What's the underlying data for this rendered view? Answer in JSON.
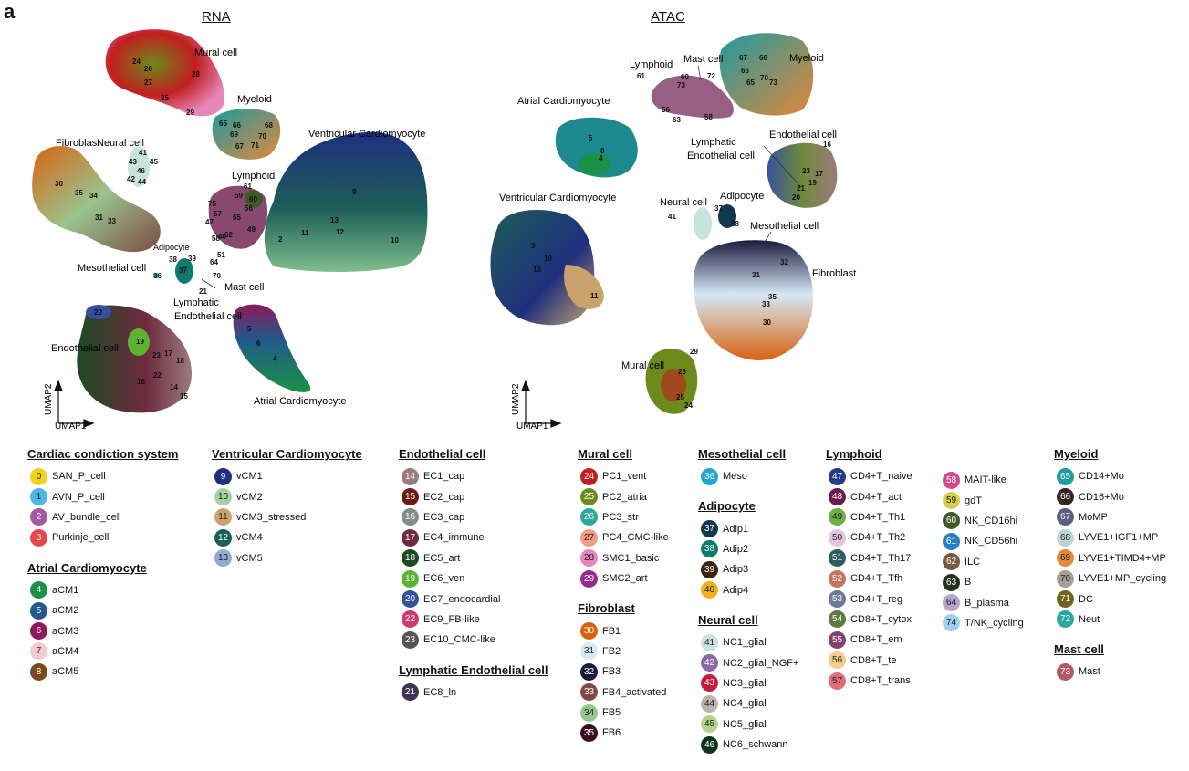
{
  "panel_letter": "a",
  "rna_title": "RNA",
  "atac_title": "ATAC",
  "axis": {
    "umap1": "UMAP1",
    "umap2": "UMAP2"
  },
  "rna_labels": [
    "Mural cell",
    "Myeloid",
    "Neural cell",
    "Fibroblast",
    "Ventricular Cardiomyocyte",
    "Lymphoid",
    "Adipocyte",
    "Mesothelial cell",
    "Mast cell",
    "Lymphatic",
    "Endothelial cell",
    "Endothelial cell",
    "Atrial Cardiomyocyte"
  ],
  "atac_labels": [
    "Lymphoid",
    "Mast cell",
    "Myeloid",
    "Atrial Cardiomyocyte",
    "Endothelial cell",
    "Lymphatic",
    "Endothelial cell",
    "Ventricular Cardiomyocyte",
    "Neural cell",
    "Adipocyte",
    "Mesothelial cell",
    "Fibroblast",
    "Mural cell"
  ],
  "rna_numbers": [
    "24",
    "26",
    "27",
    "28",
    "25",
    "29",
    "65",
    "69",
    "66",
    "68",
    "70",
    "67",
    "71",
    "41",
    "45",
    "43",
    "46",
    "42",
    "44",
    "30",
    "35",
    "34",
    "31",
    "33",
    "75",
    "57",
    "47",
    "61",
    "59",
    "60",
    "56",
    "55",
    "49",
    "62",
    "40",
    "58",
    "51",
    "64",
    "70",
    "38",
    "37",
    "39",
    "36",
    "21",
    "20",
    "19",
    "23",
    "17",
    "18",
    "16",
    "22",
    "14",
    "15",
    "9",
    "13",
    "12",
    "11",
    "2",
    "10",
    "5",
    "6",
    "4"
  ],
  "atac_numbers": [
    "61",
    "60",
    "73",
    "72",
    "67",
    "68",
    "66",
    "65",
    "70",
    "73",
    "56",
    "63",
    "58",
    "5",
    "8",
    "4",
    "16",
    "21",
    "20",
    "19",
    "17",
    "23",
    "37",
    "38",
    "41",
    "3",
    "10",
    "13",
    "11",
    "31",
    "32",
    "35",
    "33",
    "30",
    "29",
    "28",
    "25",
    "24"
  ],
  "legend": [
    {
      "title": "Cardiac condiction system",
      "items": [
        {
          "num": "0",
          "label": "SAN_P_cell",
          "color": "#f2d21b"
        },
        {
          "num": "1",
          "label": "AVN_P_cell",
          "color": "#4bb8e5"
        },
        {
          "num": "2",
          "label": "AV_bundle_cell",
          "color": "#a35aa0"
        },
        {
          "num": "3",
          "label": "Purkinje_cell",
          "color": "#e8474a"
        }
      ]
    },
    {
      "title": "Atrial Cardiomyocyte",
      "items": [
        {
          "num": "4",
          "label": "aCM1",
          "color": "#1a9146"
        },
        {
          "num": "5",
          "label": "aCM2",
          "color": "#22598c"
        },
        {
          "num": "6",
          "label": "aCM3",
          "color": "#8b1a5a"
        },
        {
          "num": "7",
          "label": "aCM4",
          "color": "#f3c9d2"
        },
        {
          "num": "8",
          "label": "aCM5",
          "color": "#7a4a1f"
        }
      ]
    },
    {
      "title": "Ventricular Cardiomyocyte",
      "items": [
        {
          "num": "9",
          "label": "vCM1",
          "color": "#1f2f7e"
        },
        {
          "num": "10",
          "label": "vCM2",
          "color": "#a7d3a4"
        },
        {
          "num": "11",
          "label": "vCM3_stressed",
          "color": "#c8a36b"
        },
        {
          "num": "12",
          "label": "vCM4",
          "color": "#1d5e57"
        },
        {
          "num": "13",
          "label": "vCM5",
          "color": "#94a8d8"
        }
      ]
    },
    {
      "title": "Endothelial cell",
      "items": [
        {
          "num": "14",
          "label": "EC1_cap",
          "color": "#9c7a7d"
        },
        {
          "num": "15",
          "label": "EC2_cap",
          "color": "#6a1c10"
        },
        {
          "num": "16",
          "label": "EC3_cap",
          "color": "#7f8f88"
        },
        {
          "num": "17",
          "label": "EC4_immune",
          "color": "#6e2a40"
        },
        {
          "num": "18",
          "label": "EC5_art",
          "color": "#1c4a22"
        },
        {
          "num": "19",
          "label": "EC6_ven",
          "color": "#5db231"
        },
        {
          "num": "20",
          "label": "EC7_endocardial",
          "color": "#3650a0"
        },
        {
          "num": "22",
          "label": "EC9_FB-like",
          "color": "#d03a6a"
        },
        {
          "num": "23",
          "label": "EC10_CMC-like",
          "color": "#555555"
        }
      ]
    },
    {
      "title": "Lymphatic Endothelial cell",
      "items": [
        {
          "num": "21",
          "label": "EC8_ln",
          "color": "#3e3354"
        }
      ]
    },
    {
      "title": "Mural cell",
      "items": [
        {
          "num": "24",
          "label": "PC1_vent",
          "color": "#c11f1f"
        },
        {
          "num": "25",
          "label": "PC2_atria",
          "color": "#6d8a1c"
        },
        {
          "num": "26",
          "label": "PC3_str",
          "color": "#2aa89a"
        },
        {
          "num": "27",
          "label": "PC4_CMC-like",
          "color": "#f29b86"
        },
        {
          "num": "28",
          "label": "SMC1_basic",
          "color": "#e587b8"
        },
        {
          "num": "29",
          "label": "SMC2_art",
          "color": "#9a2a8e"
        }
      ]
    },
    {
      "title": "Fibroblast",
      "items": [
        {
          "num": "30",
          "label": "FB1",
          "color": "#d9620f"
        },
        {
          "num": "31",
          "label": "FB2",
          "color": "#d5e8f5"
        },
        {
          "num": "32",
          "label": "FB3",
          "color": "#1b1a3e"
        },
        {
          "num": "33",
          "label": "FB4_activated",
          "color": "#7e4a44"
        },
        {
          "num": "34",
          "label": "FB5",
          "color": "#98c48e"
        },
        {
          "num": "35",
          "label": "FB6",
          "color": "#3a0e22"
        }
      ]
    },
    {
      "title": "Mesothelial cell",
      "items": [
        {
          "num": "36",
          "label": "Meso",
          "color": "#23a6d5"
        }
      ]
    },
    {
      "title": "Adipocyte",
      "items": [
        {
          "num": "37",
          "label": "Adip1",
          "color": "#13384d"
        },
        {
          "num": "38",
          "label": "Adip2",
          "color": "#0f7a6e"
        },
        {
          "num": "39",
          "label": "Adip3",
          "color": "#3a2410"
        },
        {
          "num": "40",
          "label": "Adip4",
          "color": "#f0b01e"
        }
      ]
    },
    {
      "title": "Neural cell",
      "items": [
        {
          "num": "41",
          "label": "NC1_glial",
          "color": "#c8e3dc"
        },
        {
          "num": "42",
          "label": "NC2_glial_NGF+",
          "color": "#8a6aa6"
        },
        {
          "num": "43",
          "label": "NC3_glial",
          "color": "#c71a3d"
        },
        {
          "num": "44",
          "label": "NC4_glial",
          "color": "#bdb5ad"
        },
        {
          "num": "45",
          "label": "NC5_glial",
          "color": "#b4d48c"
        },
        {
          "num": "46",
          "label": "NC6_schwann",
          "color": "#0f3322"
        }
      ]
    },
    {
      "title": "Lymphoid",
      "items": [
        {
          "num": "47",
          "label": "CD4+T_naive",
          "color": "#243b8a"
        },
        {
          "num": "48",
          "label": "CD4+T_act",
          "color": "#6b1a4a"
        },
        {
          "num": "49",
          "label": "CD4+T_Th1",
          "color": "#6ab045"
        },
        {
          "num": "50",
          "label": "CD4+T_Th2",
          "color": "#e2c6e2"
        },
        {
          "num": "51",
          "label": "CD4+T_Th17",
          "color": "#2f5c5c"
        },
        {
          "num": "52",
          "label": "CD4+T_Tfh",
          "color": "#c47560"
        },
        {
          "num": "53",
          "label": "CD4+T_reg",
          "color": "#6f7894"
        },
        {
          "num": "54",
          "label": "CD8+T_cytox",
          "color": "#5f7a42"
        },
        {
          "num": "55",
          "label": "CD8+T_em",
          "color": "#84436e"
        },
        {
          "num": "56",
          "label": "CD8+T_te",
          "color": "#f6cc8e"
        },
        {
          "num": "57",
          "label": "CD8+T_trans",
          "color": "#e46c76"
        }
      ]
    },
    {
      "title": "",
      "items": [
        {
          "num": "58",
          "label": "MAIT-like",
          "color": "#d04a8e"
        },
        {
          "num": "59",
          "label": "gdT",
          "color": "#d4cf4a"
        },
        {
          "num": "60",
          "label": "NK_CD16hi",
          "color": "#3f5a2a"
        },
        {
          "num": "61",
          "label": "NK_CD56hi",
          "color": "#2a7ec4"
        },
        {
          "num": "62",
          "label": "ILC",
          "color": "#7a5a3a"
        },
        {
          "num": "63",
          "label": "B",
          "color": "#263020"
        },
        {
          "num": "64",
          "label": "B_plasma",
          "color": "#b7a3c6"
        },
        {
          "num": "74",
          "label": "T/NK_cycling",
          "color": "#9ed0ef"
        }
      ]
    },
    {
      "title": "Myeloid",
      "items": [
        {
          "num": "65",
          "label": "CD14+Mo",
          "color": "#1e9aa0"
        },
        {
          "num": "66",
          "label": "CD16+Mo",
          "color": "#3a2620"
        },
        {
          "num": "67",
          "label": "MoMP",
          "color": "#5a5f7e"
        },
        {
          "num": "68",
          "label": "LYVE1+IGF1+MP",
          "color": "#bcd4d8"
        },
        {
          "num": "69",
          "label": "LYVE1+TIMD4+MP",
          "color": "#e4883a"
        },
        {
          "num": "70",
          "label": "LYVE1+MP_cycling",
          "color": "#a89e96"
        },
        {
          "num": "71",
          "label": "DC",
          "color": "#6e6420"
        },
        {
          "num": "72",
          "label": "Neut",
          "color": "#2aa8a0"
        }
      ]
    },
    {
      "title": "Mast cell",
      "items": [
        {
          "num": "73",
          "label": "Mast",
          "color": "#b5586a"
        }
      ]
    }
  ]
}
